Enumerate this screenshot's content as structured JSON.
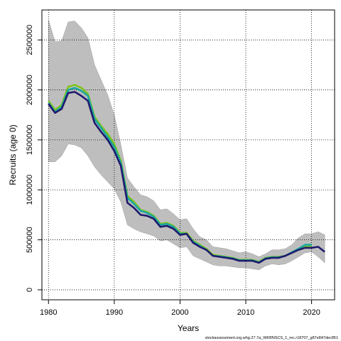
{
  "chart_data": {
    "type": "line",
    "xlabel": "Years",
    "ylabel": "Recruits (age 0)",
    "xlim": [
      1979,
      2023.5
    ],
    "ylim": [
      -100000,
      2800000
    ],
    "xticks": [
      1980,
      1990,
      2000,
      2010,
      2020
    ],
    "yticks": [
      0,
      500000,
      1000000,
      1500000,
      2000000,
      2500000
    ],
    "grid": true,
    "band_color": "#bebebe",
    "band": {
      "x": [
        1980,
        1981,
        1982,
        1983,
        1984,
        1985,
        1986,
        1987,
        1988,
        1989,
        1990,
        1991,
        1992,
        1993,
        1994,
        1995,
        1996,
        1997,
        1998,
        1999,
        2000,
        2001,
        2002,
        2003,
        2004,
        2005,
        2006,
        2007,
        2008,
        2009,
        2010,
        2011,
        2012,
        2013,
        2014,
        2015,
        2016,
        2017,
        2018,
        2019,
        2020,
        2021,
        2022
      ],
      "upper": [
        2700000,
        2480000,
        2490000,
        2680000,
        2690000,
        2620000,
        2520000,
        2250000,
        2100000,
        1950000,
        1750000,
        1450000,
        1120000,
        1030000,
        950000,
        930000,
        890000,
        800000,
        810000,
        760000,
        700000,
        710000,
        610000,
        530000,
        500000,
        430000,
        420000,
        410000,
        390000,
        370000,
        380000,
        360000,
        330000,
        360000,
        400000,
        400000,
        410000,
        450000,
        520000,
        560000,
        560000,
        580000,
        550000
      ],
      "lower": [
        1280000,
        1280000,
        1340000,
        1460000,
        1450000,
        1420000,
        1340000,
        1230000,
        1150000,
        1080000,
        1010000,
        880000,
        650000,
        610000,
        580000,
        560000,
        540000,
        490000,
        500000,
        460000,
        420000,
        430000,
        340000,
        310000,
        280000,
        250000,
        240000,
        240000,
        230000,
        220000,
        220000,
        210000,
        200000,
        240000,
        260000,
        250000,
        260000,
        290000,
        330000,
        370000,
        380000,
        330000,
        270000
      ]
    },
    "series": [
      {
        "color": "#7fc41d",
        "x": [
          1980,
          1981,
          1982,
          1983,
          1984,
          1985,
          1986,
          1987,
          1988,
          1989,
          1990,
          1991,
          1992,
          1993,
          1994,
          1995,
          1996,
          1997,
          1998,
          1999,
          2000,
          2001,
          2002,
          2003,
          2004,
          2005,
          2006,
          2007,
          2008,
          2009,
          2010,
          2011,
          2012,
          2013,
          2014,
          2015,
          2016,
          2017,
          2018,
          2019,
          2020
        ],
        "y": [
          1890000,
          1800000,
          1850000,
          2030000,
          2050000,
          2020000,
          1960000,
          1730000,
          1640000,
          1560000,
          1460000,
          1290000,
          940000,
          880000,
          800000,
          780000,
          740000,
          660000,
          670000,
          640000,
          570000,
          570000,
          490000,
          450000,
          410000,
          350000,
          340000,
          330000,
          320000,
          300000,
          300000,
          300000,
          280000,
          320000,
          330000,
          330000,
          340000,
          370000,
          400000,
          430000,
          440000
        ]
      },
      {
        "color": "#19a7a0",
        "x": [
          1980,
          1981,
          1982,
          1983,
          1984,
          1985,
          1986,
          1987,
          1988,
          1989,
          1990,
          1991,
          1992,
          1993,
          1994,
          1995,
          1996,
          1997,
          1998,
          1999,
          2000,
          2001,
          2002,
          2003,
          2004,
          2005,
          2006,
          2007,
          2008,
          2009,
          2010,
          2011,
          2012,
          2013,
          2014,
          2015,
          2016,
          2017,
          2018,
          2019,
          2020
        ],
        "y": [
          1870000,
          1780000,
          1830000,
          2000000,
          2020000,
          1990000,
          1940000,
          1710000,
          1620000,
          1530000,
          1430000,
          1270000,
          920000,
          860000,
          790000,
          770000,
          730000,
          650000,
          660000,
          630000,
          560000,
          560000,
          480000,
          440000,
          400000,
          340000,
          335000,
          325000,
          315000,
          295000,
          295000,
          295000,
          275000,
          315000,
          325000,
          325000,
          340000,
          375000,
          410000,
          450000,
          450000
        ]
      },
      {
        "color": "#1f1a6e",
        "x": [
          1980,
          1981,
          1982,
          1983,
          1984,
          1985,
          1986,
          1987,
          1988,
          1989,
          1990,
          1991,
          1992,
          1993,
          1994,
          1995,
          1996,
          1997,
          1998,
          1999,
          2000,
          2001,
          2002,
          2003,
          2004,
          2005,
          2006,
          2007,
          2008,
          2009,
          2010,
          2011,
          2012,
          2013,
          2014,
          2015,
          2016,
          2017,
          2018,
          2019,
          2020,
          2021,
          2022
        ],
        "y": [
          1860000,
          1770000,
          1810000,
          1970000,
          1980000,
          1940000,
          1890000,
          1670000,
          1580000,
          1500000,
          1390000,
          1240000,
          870000,
          820000,
          750000,
          740000,
          710000,
          630000,
          640000,
          610000,
          550000,
          560000,
          470000,
          430000,
          400000,
          340000,
          330000,
          320000,
          310000,
          290000,
          290000,
          290000,
          270000,
          310000,
          320000,
          320000,
          340000,
          370000,
          400000,
          420000,
          420000,
          430000,
          380000
        ]
      }
    ]
  },
  "footer": "stockassessment.org,whg.27.7a_WKBNSCS_1_rec,r18707_g87e847dec851"
}
